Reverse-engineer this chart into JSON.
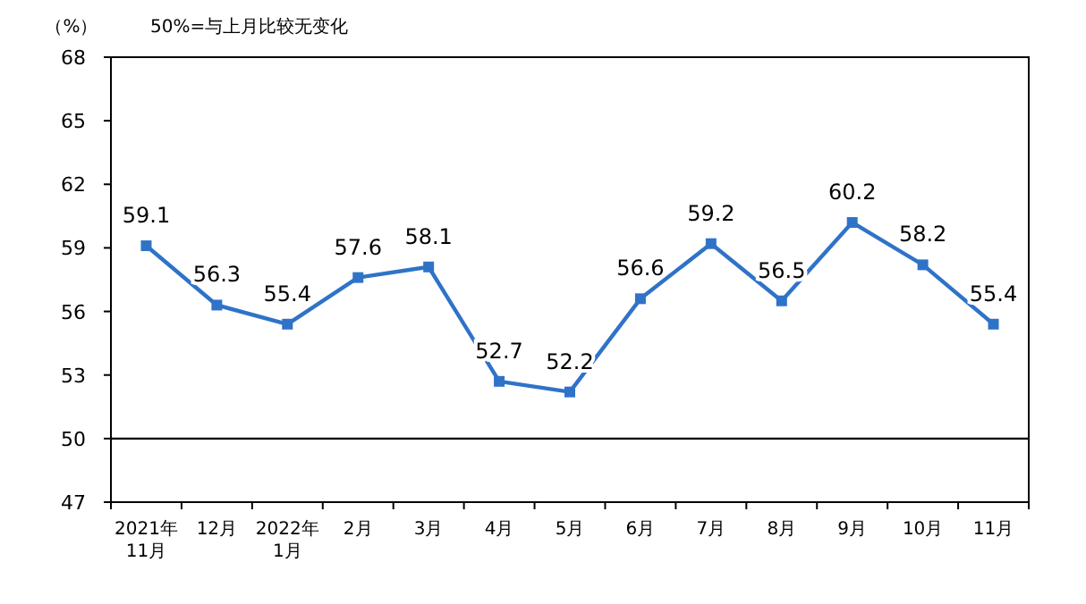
{
  "chart_data": {
    "type": "line",
    "ylabel": "（%）",
    "annotations": [
      "50%=与上月比较无变化"
    ],
    "categories": [
      "2021年\n11月",
      "12月",
      "2022年\n1月",
      "2月",
      "3月",
      "4月",
      "5月",
      "6月",
      "7月",
      "8月",
      "9月",
      "10月",
      "11月"
    ],
    "series": [
      {
        "color": "#2f73c8",
        "values": [
          59.1,
          56.3,
          55.4,
          57.6,
          58.1,
          52.7,
          52.2,
          56.6,
          59.2,
          56.5,
          60.2,
          58.2,
          55.4
        ]
      }
    ],
    "ylim": [
      47,
      68
    ],
    "yticks": [
      47,
      50,
      53,
      56,
      59,
      62,
      65,
      68
    ],
    "ref_lines": [
      {
        "axis": "y",
        "value": 50,
        "color": "#000000"
      }
    ],
    "marker": "square",
    "line_style": "solid",
    "data_labels": true,
    "grid": false
  }
}
